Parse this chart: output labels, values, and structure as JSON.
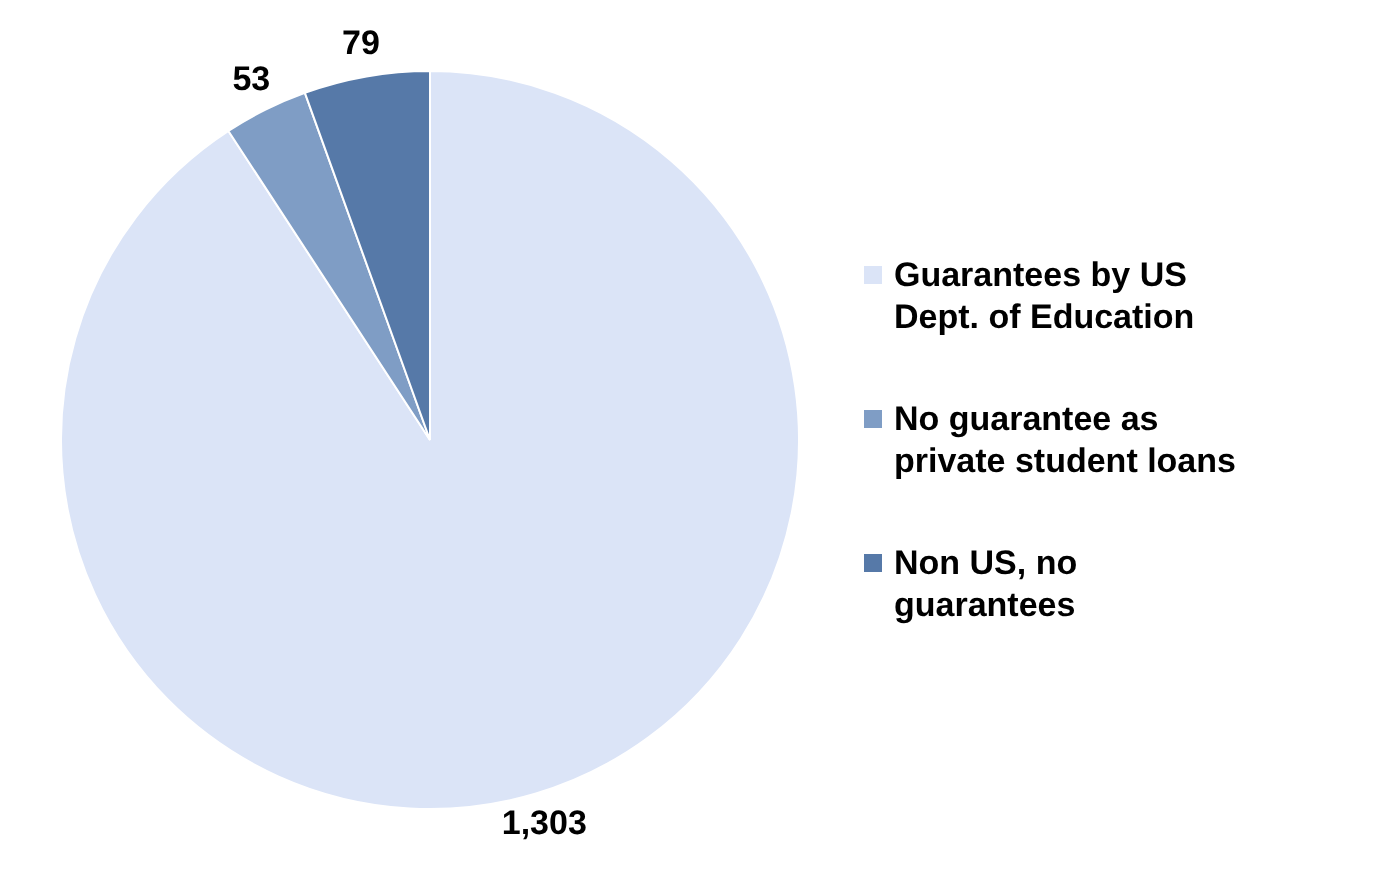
{
  "chart_data": {
    "type": "pie",
    "categories": [
      "Guarantees by US Dept. of Education",
      "No guarantee as private student loans",
      "Non US, no guarantees"
    ],
    "values": [
      1303,
      53,
      79
    ],
    "colors": [
      "#dbe4f7",
      "#7f9dc5",
      "#5679a8"
    ],
    "value_labels": [
      "1,303",
      "53",
      "79"
    ],
    "legend": "right"
  }
}
